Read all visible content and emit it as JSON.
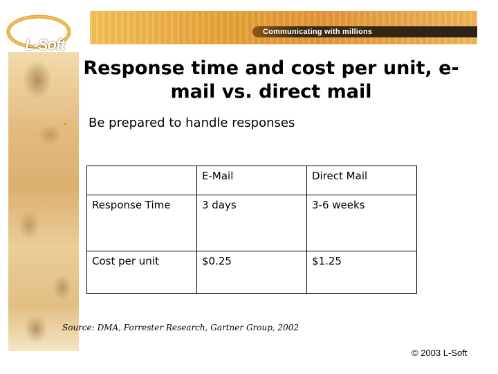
{
  "header": {
    "logo_text": "L-Soft",
    "banner_text": "Communicating with millions"
  },
  "slide": {
    "title_line1": "Response time and cost per unit, e-",
    "title_line2": "mail vs. direct mail",
    "bullet": "Be prepared to handle responses"
  },
  "table": {
    "header": [
      "",
      "E-Mail",
      "Direct Mail"
    ],
    "rows": [
      [
        "Response Time",
        "3 days",
        "3-6 weeks"
      ],
      [
        "Cost per unit",
        "$0.25",
        "$1.25"
      ]
    ]
  },
  "footer": {
    "source": "Source: DMA, Forrester Research, Gartner Group, 2002",
    "copyright": "© 2003 L-Soft"
  },
  "colors": {
    "banner": "#e9a43a",
    "bullet": "#e0a030"
  }
}
